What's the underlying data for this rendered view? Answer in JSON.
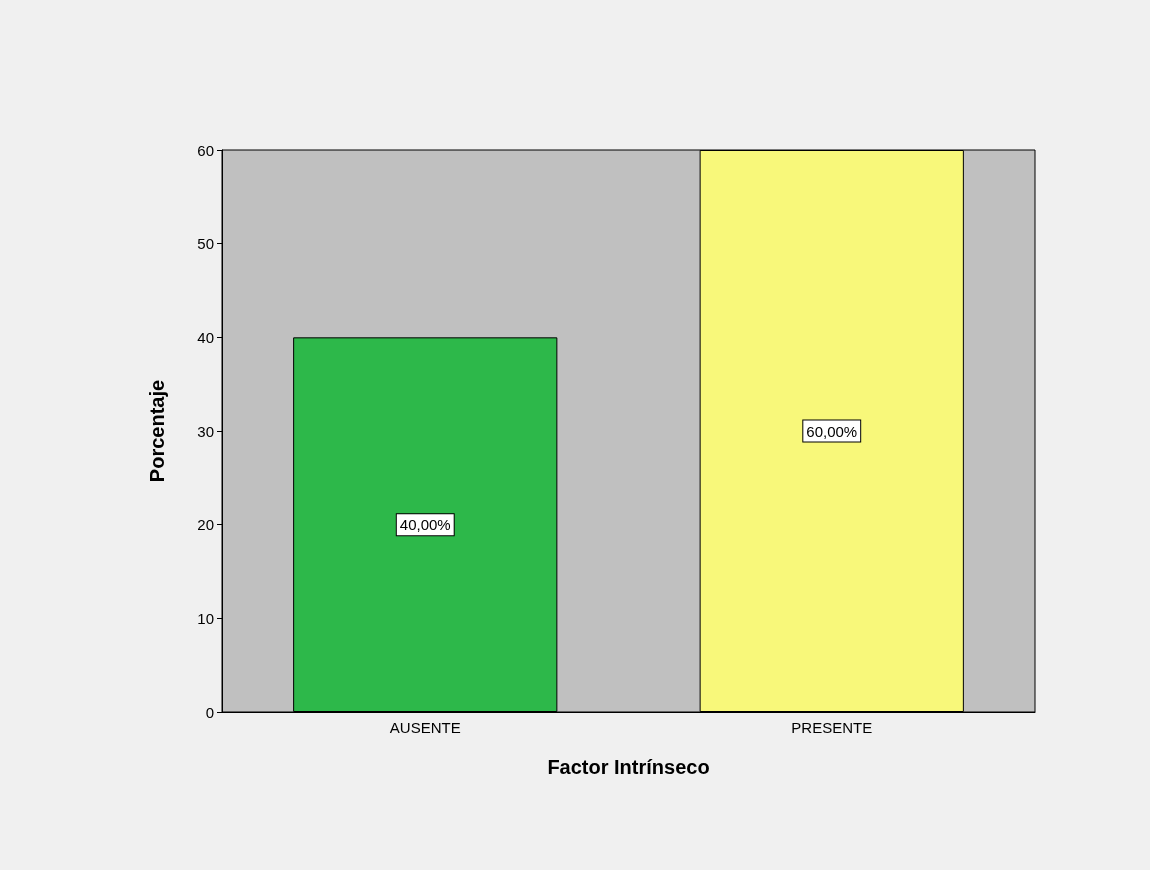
{
  "chart_data": {
    "type": "bar",
    "xlabel": "Factor Intrínseco",
    "ylabel": "Porcentaje",
    "categories": [
      "AUSENTE",
      "PRESENTE"
    ],
    "values": [
      40,
      60
    ],
    "colors": [
      "#2db84a",
      "#f8f87a"
    ],
    "value_labels": [
      "40,00%",
      "60,00%"
    ],
    "ylim": [
      0,
      60
    ],
    "yticks": [
      0,
      10,
      20,
      30,
      40,
      50,
      60
    ],
    "grid": false
  }
}
